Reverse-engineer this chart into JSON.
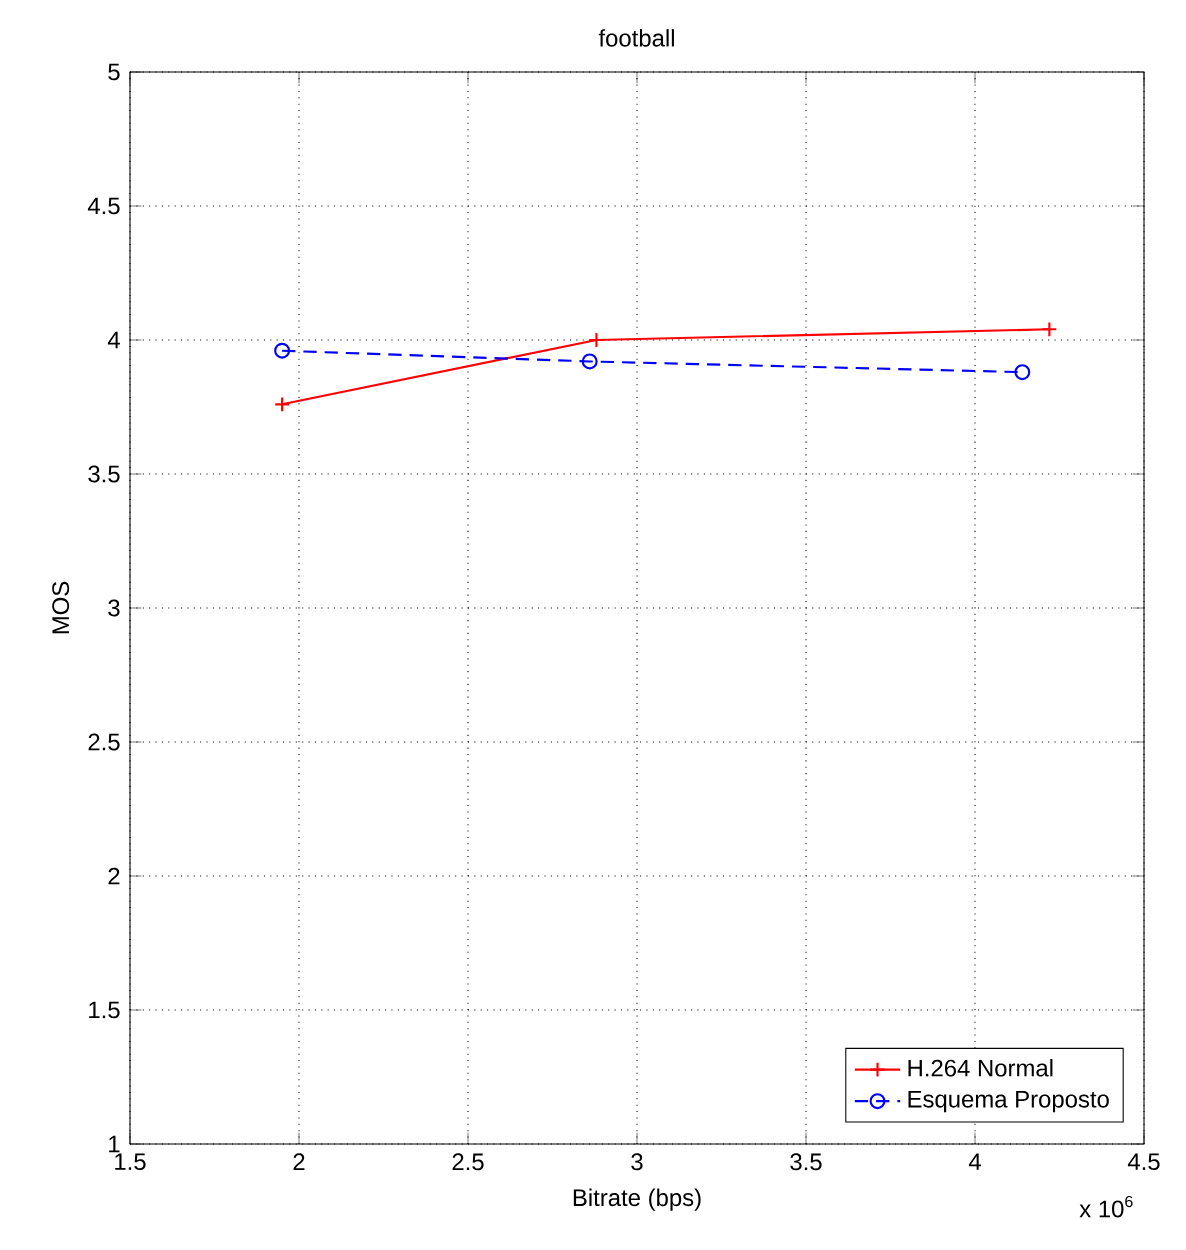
{
  "chart_data": {
    "type": "line",
    "title": "football",
    "xlabel": "Bitrate (bps)",
    "ylabel": "MOS",
    "annotations": [
      "x 10$^{6}$"
    ],
    "series": [
      {
        "name": "H.264 Normal",
        "color": "#ff0000",
        "marker": "cross",
        "line_style": "solid",
        "x": [
          1.95,
          2.88,
          4.22
        ],
        "values": [
          3.76,
          4.0,
          4.04
        ]
      },
      {
        "name": "Esquema Proposto",
        "color": "#0000ff",
        "marker": "circle",
        "line_style": "dashed",
        "x": [
          1.95,
          2.86,
          4.14
        ],
        "values": [
          3.96,
          3.92,
          3.88
        ]
      }
    ],
    "xlim": [
      1.5,
      4.5
    ],
    "xticks": [
      1.5,
      2,
      2.5,
      3,
      3.5,
      4,
      4.5
    ],
    "ylim": [
      1,
      5
    ],
    "yticks": [
      1,
      1.5,
      2,
      2.5,
      3,
      3.5,
      4,
      4.5,
      5
    ],
    "grid": true,
    "legend": "bottom right"
  }
}
